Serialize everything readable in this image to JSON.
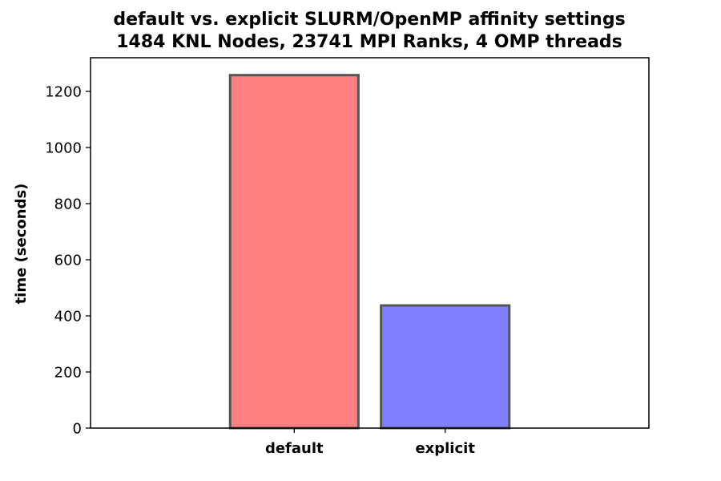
{
  "chart_data": {
    "type": "bar",
    "title": "default vs. explicit SLURM/OpenMP affinity settings",
    "subtitle": "1484 KNL Nodes, 23741 MPI Ranks, 4 OMP threads",
    "xlabel": "",
    "ylabel": "time (seconds)",
    "categories": [
      "default",
      "explicit"
    ],
    "values": [
      1258,
      437
    ],
    "bar_colors": [
      "#ff8080",
      "#8080ff"
    ],
    "edge_color": "#555555",
    "ylim": [
      0,
      1320
    ],
    "xlim": [
      -1.35,
      2.35
    ],
    "x_positions": [
      0,
      1
    ],
    "bar_width": 0.85,
    "yticks": [
      0,
      200,
      400,
      600,
      800,
      1000,
      1200
    ],
    "ytick_labels": [
      "0",
      "200",
      "400",
      "600",
      "800",
      "1000",
      "1200"
    ],
    "grid": false,
    "legend": "none"
  }
}
